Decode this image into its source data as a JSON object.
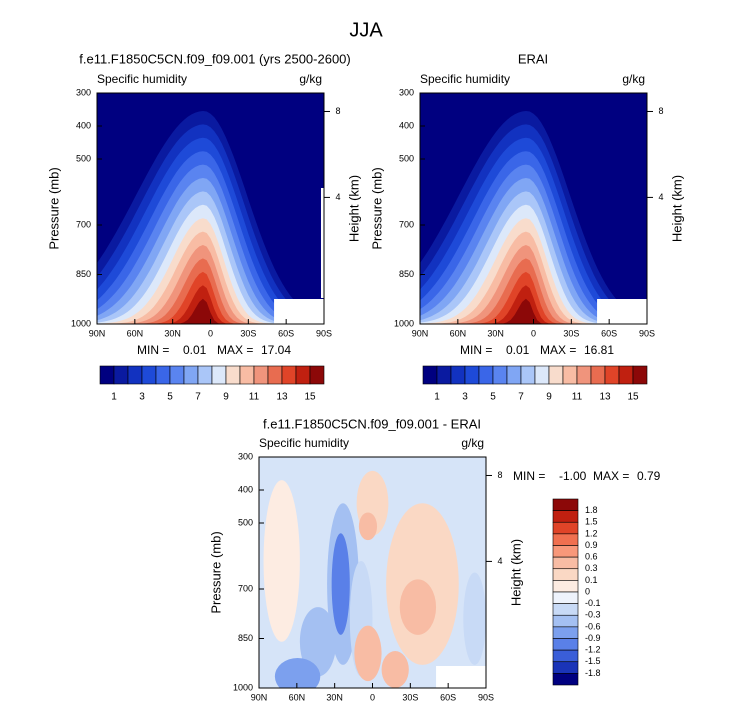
{
  "title": "JJA",
  "panels": [
    {
      "title": "f.e11.F1850C5CN.f09_f09.001 (yrs 2500-2600)",
      "left_label": "Specific humidity",
      "right_label": "g/kg",
      "y_label": "Pressure (mb)",
      "y2_label": "Height (km)",
      "yticks": [
        300,
        400,
        500,
        700,
        850,
        1000
      ],
      "y2ticks": [
        8,
        4
      ],
      "xticks": [
        "90N",
        "60N",
        "30N",
        "0",
        "30S",
        "60S",
        "90S"
      ],
      "min_label": "MIN =",
      "min": "0.01",
      "max_label": "MAX =",
      "max": "17.04",
      "colorbar": {
        "labels": [
          "1",
          "3",
          "5",
          "7",
          "9",
          "11",
          "13",
          "15"
        ],
        "colors": [
          "#000080",
          "#0a1aa0",
          "#1232c0",
          "#1e4ad8",
          "#3a66e8",
          "#5a84f0",
          "#80a6f4",
          "#aac6f8",
          "#dce8fa",
          "#f8dccc",
          "#f8bca4",
          "#f0947c",
          "#e86c50",
          "#e04428",
          "#c02010",
          "#8c0808"
        ]
      }
    },
    {
      "title": "ERAI",
      "left_label": "Specific humidity",
      "right_label": "g/kg",
      "y_label": "Pressure (mb)",
      "y2_label": "Height (km)",
      "yticks": [
        300,
        400,
        500,
        700,
        850,
        1000
      ],
      "y2ticks": [
        8,
        4
      ],
      "xticks": [
        "90N",
        "60N",
        "30N",
        "0",
        "30S",
        "60S",
        "90S"
      ],
      "min_label": "MIN =",
      "min": "0.01",
      "max_label": "MAX =",
      "max": "16.81",
      "colorbar": {
        "labels": [
          "1",
          "3",
          "5",
          "7",
          "9",
          "11",
          "13",
          "15"
        ],
        "colors": [
          "#000080",
          "#0a1aa0",
          "#1232c0",
          "#1e4ad8",
          "#3a66e8",
          "#5a84f0",
          "#80a6f4",
          "#aac6f8",
          "#dce8fa",
          "#f8dccc",
          "#f8bca4",
          "#f0947c",
          "#e86c50",
          "#e04428",
          "#c02010",
          "#8c0808"
        ]
      }
    },
    {
      "title": "f.e11.F1850C5CN.f09_f09.001 - ERAI",
      "left_label": "Specific humidity",
      "right_label": "g/kg",
      "y_label": "Pressure (mb)",
      "y2_label": "Height (km)",
      "yticks": [
        300,
        400,
        500,
        700,
        850,
        1000
      ],
      "y2ticks": [
        8,
        4
      ],
      "xticks": [
        "90N",
        "60N",
        "30N",
        "0",
        "30S",
        "60S",
        "90S"
      ],
      "min_label": "MIN =",
      "min": "-1.00",
      "max_label": "MAX =",
      "max": "0.79",
      "colorbar": {
        "labels": [
          "1.8",
          "1.5",
          "1.2",
          "0.9",
          "0.6",
          "0.3",
          "0.1",
          "0",
          "-0.1",
          "-0.3",
          "-0.6",
          "-0.9",
          "-1.2",
          "-1.5",
          "-1.8"
        ],
        "colors": [
          "#8c0808",
          "#c02010",
          "#e04428",
          "#f07050",
          "#f8987a",
          "#f8bca4",
          "#fad8c4",
          "#fdece2",
          "#eef3fc",
          "#c8daf6",
          "#a4c0f2",
          "#7ca0ee",
          "#5a80e8",
          "#3a5ed8",
          "#1a34b8",
          "#000080"
        ]
      }
    }
  ]
}
